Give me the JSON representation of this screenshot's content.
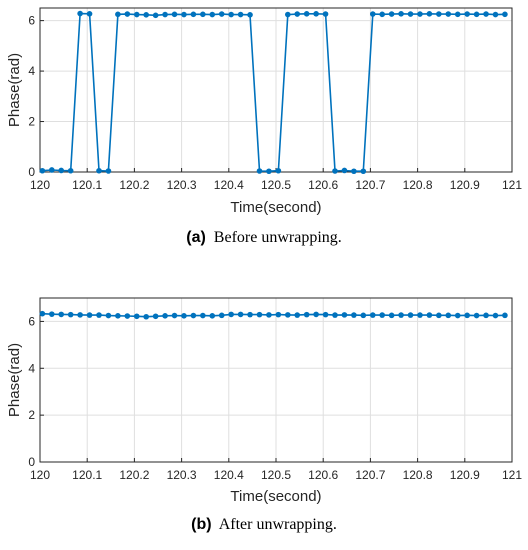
{
  "chart_data": [
    {
      "type": "line",
      "xlabel": "Time(second)",
      "ylabel": "Phase(rad)",
      "xlim": [
        120,
        121
      ],
      "ylim": [
        0,
        6.5
      ],
      "xticks": [
        "120",
        "120.1",
        "120.2",
        "120.3",
        "120.4",
        "120.5",
        "120.6",
        "120.7",
        "120.8",
        "120.9",
        "121"
      ],
      "yticks": [
        "0",
        "2",
        "4",
        "6"
      ],
      "grid": true,
      "caption_label": "(a)",
      "caption_text": "Before unwrapping.",
      "color": "#0072BD",
      "series": [
        {
          "x": [
            120.005,
            120.025,
            120.045,
            120.065,
            120.085,
            120.105,
            120.125,
            120.145,
            120.165,
            120.185,
            120.205,
            120.225,
            120.245,
            120.265,
            120.285,
            120.305,
            120.325,
            120.345,
            120.365,
            120.385,
            120.405,
            120.425,
            120.445,
            120.465,
            120.485,
            120.505,
            120.525,
            120.545,
            120.565,
            120.585,
            120.605,
            120.625,
            120.645,
            120.665,
            120.685,
            120.705,
            120.725,
            120.745,
            120.765,
            120.785,
            120.805,
            120.825,
            120.845,
            120.865,
            120.885,
            120.905,
            120.925,
            120.945,
            120.965,
            120.985
          ],
          "values": [
            0.05,
            0.08,
            0.06,
            0.05,
            6.28,
            6.27,
            0.05,
            0.04,
            6.25,
            6.26,
            6.24,
            6.23,
            6.21,
            6.24,
            6.25,
            6.24,
            6.25,
            6.25,
            6.24,
            6.26,
            6.24,
            6.24,
            6.23,
            0.04,
            0.03,
            0.05,
            6.24,
            6.26,
            6.27,
            6.27,
            6.26,
            0.04,
            0.06,
            0.03,
            0.03,
            6.26,
            6.25,
            6.26,
            6.27,
            6.26,
            6.26,
            6.27,
            6.26,
            6.26,
            6.25,
            6.26,
            6.25,
            6.26,
            6.24,
            6.25
          ]
        }
      ]
    },
    {
      "type": "line",
      "xlabel": "Time(second)",
      "ylabel": "Phase(rad)",
      "xlim": [
        120,
        121
      ],
      "ylim": [
        0,
        7
      ],
      "xticks": [
        "120",
        "120.1",
        "120.2",
        "120.3",
        "120.4",
        "120.5",
        "120.6",
        "120.7",
        "120.8",
        "120.9",
        "121"
      ],
      "yticks": [
        "0",
        "2",
        "4",
        "6"
      ],
      "grid": true,
      "caption_label": "(b)",
      "caption_text": "After unwrapping.",
      "color": "#0072BD",
      "series": [
        {
          "x": [
            120.005,
            120.025,
            120.045,
            120.065,
            120.085,
            120.105,
            120.125,
            120.145,
            120.165,
            120.185,
            120.205,
            120.225,
            120.245,
            120.265,
            120.285,
            120.305,
            120.325,
            120.345,
            120.365,
            120.385,
            120.405,
            120.425,
            120.445,
            120.465,
            120.485,
            120.505,
            120.525,
            120.545,
            120.565,
            120.585,
            120.605,
            120.625,
            120.645,
            120.665,
            120.685,
            120.705,
            120.725,
            120.745,
            120.765,
            120.785,
            120.805,
            120.825,
            120.845,
            120.865,
            120.885,
            120.905,
            120.925,
            120.945,
            120.965,
            120.985
          ],
          "values": [
            6.33,
            6.31,
            6.3,
            6.29,
            6.28,
            6.27,
            6.27,
            6.25,
            6.24,
            6.23,
            6.22,
            6.2,
            6.22,
            6.24,
            6.25,
            6.24,
            6.25,
            6.25,
            6.24,
            6.26,
            6.3,
            6.3,
            6.29,
            6.29,
            6.28,
            6.29,
            6.28,
            6.27,
            6.29,
            6.3,
            6.29,
            6.27,
            6.28,
            6.27,
            6.26,
            6.27,
            6.27,
            6.26,
            6.27,
            6.27,
            6.27,
            6.27,
            6.26,
            6.26,
            6.25,
            6.26,
            6.25,
            6.26,
            6.25,
            6.26
          ]
        }
      ]
    }
  ]
}
